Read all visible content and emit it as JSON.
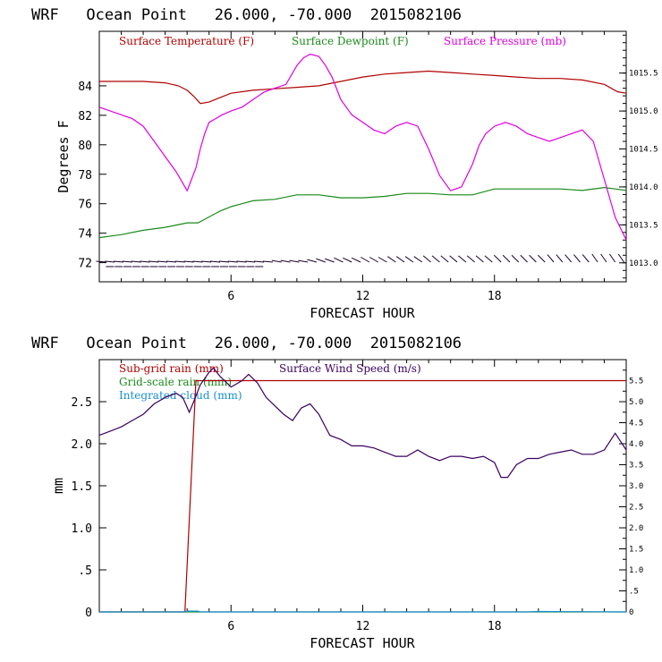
{
  "chart_data": [
    {
      "type": "line",
      "title": "WRF   Ocean Point   26.000, -70.000  2015082106",
      "xlabel": "FORECAST HOUR",
      "ylabel": "Degrees F",
      "xlim": [
        0,
        24
      ],
      "ylim": [
        70.7,
        87.7
      ],
      "y2lim": [
        1012.75,
        1016.05
      ],
      "xticks": [
        "6",
        "12",
        "18"
      ],
      "yticks": [
        "72",
        "74",
        "76",
        "78",
        "80",
        "82",
        "84"
      ],
      "y2ticks": [
        "1013.0",
        "1013.5",
        "1014.0",
        "1014.5",
        "1015.0",
        "1015.5"
      ],
      "series": [
        {
          "name": "Surface Temperature (F)",
          "color": "#b00000",
          "axis": "left",
          "x": [
            0,
            1,
            2,
            3,
            3.6,
            4.0,
            4.3,
            4.6,
            5.0,
            5.5,
            6,
            7,
            8,
            9,
            10,
            11,
            12,
            13,
            14,
            15,
            16,
            17,
            18,
            19,
            20,
            21,
            22,
            23,
            23.6,
            24
          ],
          "y": [
            84.3,
            84.3,
            84.3,
            84.2,
            84.0,
            83.7,
            83.3,
            82.8,
            82.9,
            83.2,
            83.5,
            83.7,
            83.8,
            83.9,
            84.0,
            84.3,
            84.6,
            84.8,
            84.9,
            85.0,
            84.9,
            84.8,
            84.7,
            84.6,
            84.5,
            84.5,
            84.4,
            84.1,
            83.6,
            83.5
          ]
        },
        {
          "name": "Surface Dewpoint (F)",
          "color": "#1a8a1a",
          "axis": "left",
          "x": [
            0,
            1,
            2,
            3,
            4,
            4.5,
            5,
            5.5,
            6,
            6.5,
            7,
            8,
            9,
            10,
            11,
            12,
            13,
            14,
            15,
            16,
            17,
            18,
            19,
            20,
            21,
            22,
            23,
            23.5,
            24
          ],
          "y": [
            73.7,
            73.9,
            74.2,
            74.4,
            74.7,
            74.7,
            75.1,
            75.5,
            75.8,
            76.0,
            76.2,
            76.3,
            76.6,
            76.6,
            76.4,
            76.4,
            76.5,
            76.7,
            76.7,
            76.6,
            76.6,
            77.0,
            77.0,
            77.0,
            77.0,
            76.9,
            77.1,
            77.0,
            76.9
          ]
        },
        {
          "name": "Surface Pressure (mb)",
          "color": "#e000e0",
          "axis": "right",
          "x": [
            0,
            0.5,
            1,
            1.5,
            2,
            2.5,
            3,
            3.5,
            3.8,
            4.0,
            4.2,
            4.4,
            4.6,
            4.8,
            5.0,
            5.3,
            5.6,
            6.0,
            6.5,
            7.0,
            7.5,
            8.0,
            8.5,
            9.0,
            9.3,
            9.6,
            10.0,
            10.3,
            10.6,
            11.0,
            11.5,
            12.0,
            12.5,
            13.0,
            13.5,
            14.0,
            14.5,
            15.0,
            15.5,
            16.0,
            16.5,
            17.0,
            17.3,
            17.6,
            18.0,
            18.5,
            19.0,
            19.5,
            20.0,
            20.5,
            21.0,
            21.5,
            22.0,
            22.5,
            23.0,
            23.5,
            24.0
          ],
          "y": [
            1015.05,
            1015.0,
            1014.95,
            1014.9,
            1014.8,
            1014.6,
            1014.4,
            1014.2,
            1014.05,
            1013.95,
            1014.1,
            1014.25,
            1014.5,
            1014.7,
            1014.85,
            1014.9,
            1014.95,
            1015.0,
            1015.05,
            1015.15,
            1015.25,
            1015.3,
            1015.35,
            1015.6,
            1015.7,
            1015.75,
            1015.72,
            1015.6,
            1015.45,
            1015.15,
            1014.95,
            1014.85,
            1014.75,
            1014.7,
            1014.8,
            1014.85,
            1014.8,
            1014.5,
            1014.15,
            1013.95,
            1014.0,
            1014.3,
            1014.55,
            1014.7,
            1014.8,
            1014.85,
            1014.8,
            1014.7,
            1014.65,
            1014.6,
            1014.65,
            1014.7,
            1014.75,
            1014.6,
            1014.1,
            1013.6,
            1013.3
          ]
        }
      ],
      "wind_barbs": {
        "color": "#1a0030",
        "x": [
          0.3,
          0.7,
          1.1,
          1.5,
          1.9,
          2.3,
          2.7,
          3.1,
          3.5,
          3.9,
          4.3,
          4.7,
          5.1,
          5.5,
          5.9,
          6.3,
          6.7,
          7.1,
          7.5,
          7.9,
          8.3,
          8.7,
          9.1,
          9.5,
          9.9,
          10.3,
          10.7,
          11.1,
          11.5,
          11.9,
          12.3,
          12.7,
          13.1,
          13.5,
          13.9,
          14.3,
          14.7,
          15.1,
          15.5,
          15.9,
          16.3,
          16.7,
          17.1,
          17.5,
          17.9,
          18.3,
          18.7,
          19.1,
          19.5,
          19.9,
          20.3,
          20.7,
          21.1,
          21.5,
          21.9,
          22.3,
          22.7,
          23.1,
          23.5,
          23.9
        ],
        "direction_deg": [
          95,
          95,
          95,
          95,
          95,
          95,
          95,
          95,
          95,
          95,
          95,
          95,
          95,
          95,
          95,
          95,
          95,
          95,
          95,
          95,
          100,
          100,
          100,
          100,
          105,
          110,
          110,
          115,
          115,
          115,
          120,
          120,
          120,
          125,
          125,
          125,
          125,
          130,
          130,
          130,
          130,
          130,
          130,
          130,
          130,
          135,
          135,
          135,
          135,
          135,
          135,
          140,
          140,
          140,
          140,
          140,
          145,
          145,
          145,
          145
        ]
      }
    },
    {
      "type": "line",
      "title": "WRF   Ocean Point   26.000, -70.000  2015082106",
      "xlabel": "FORECAST HOUR",
      "ylabel": "mm",
      "xlim": [
        0,
        24
      ],
      "ylim": [
        0,
        3.0
      ],
      "y2lim": [
        0,
        6.0
      ],
      "xticks": [
        "6",
        "12",
        "18"
      ],
      "yticks": [
        "0",
        ".5",
        "1.0",
        "1.5",
        "2.0",
        "2.5"
      ],
      "y2ticks": [
        "0",
        ".5",
        "1.0",
        "1.5",
        "2.0",
        "2.5",
        "3.0",
        "3.5",
        "4.0",
        "4.5",
        "5.0",
        "5.5"
      ],
      "series": [
        {
          "name": "Sub-grid rain (mm)",
          "color": "#b00000",
          "axis": "left",
          "x": [
            0,
            3.9,
            4.4,
            24
          ],
          "y": [
            0,
            0,
            2.75,
            2.75
          ]
        },
        {
          "name": "Grid-scale rain (mm)",
          "color": "#1a8a1a",
          "axis": "left",
          "x": [
            0,
            24
          ],
          "y": [
            0,
            0
          ]
        },
        {
          "name": "Integrated cloud (mm)",
          "color": "#1a8fd0",
          "axis": "left",
          "x": [
            0,
            3.9,
            4.0,
            4.5,
            4.6,
            19.5,
            20.0,
            24
          ],
          "y": [
            0,
            0,
            0.01,
            0.01,
            0,
            0,
            0.005,
            0
          ]
        },
        {
          "name": "Surface Wind Speed (m/s)",
          "color": "#3a0060",
          "axis": "right",
          "x": [
            0,
            0.5,
            1,
            1.5,
            2,
            2.5,
            3,
            3.5,
            3.8,
            4.1,
            4.3,
            4.6,
            5.0,
            5.2,
            5.5,
            6.0,
            6.5,
            6.8,
            7.2,
            7.6,
            8.0,
            8.4,
            8.8,
            9.2,
            9.6,
            10.0,
            10.5,
            11.0,
            11.5,
            12.0,
            12.5,
            13.0,
            13.5,
            14.0,
            14.5,
            15.0,
            15.5,
            16.0,
            16.5,
            17.0,
            17.5,
            18.0,
            18.3,
            18.6,
            19.0,
            19.5,
            20.0,
            20.5,
            21.0,
            21.5,
            22.0,
            22.5,
            23.0,
            23.5,
            24.0
          ],
          "y": [
            4.2,
            4.3,
            4.4,
            4.55,
            4.7,
            4.95,
            5.1,
            5.2,
            5.1,
            4.75,
            5.0,
            5.4,
            5.7,
            5.8,
            5.6,
            5.35,
            5.5,
            5.65,
            5.45,
            5.1,
            4.9,
            4.7,
            4.55,
            4.85,
            4.95,
            4.7,
            4.2,
            4.1,
            3.95,
            3.95,
            3.9,
            3.8,
            3.7,
            3.7,
            3.85,
            3.7,
            3.6,
            3.7,
            3.7,
            3.65,
            3.7,
            3.55,
            3.2,
            3.2,
            3.5,
            3.65,
            3.65,
            3.75,
            3.8,
            3.85,
            3.75,
            3.75,
            3.85,
            4.25,
            3.85
          ]
        }
      ]
    }
  ]
}
